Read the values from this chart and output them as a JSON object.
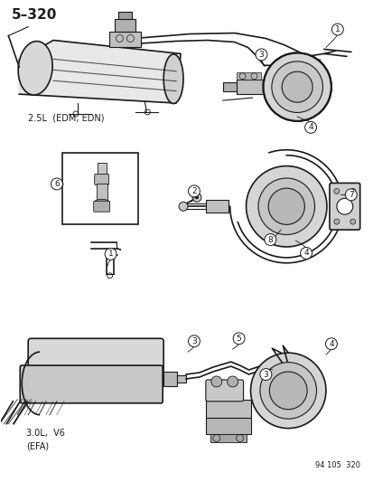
{
  "title": "5–320",
  "footer": "94 105  320",
  "label_25L": "2.5L  (EDM, EDN)",
  "label_30L": "3.0L,  V6\n(EFA)",
  "bg_color": "#ffffff",
  "line_color": "#1a1a1a",
  "font_size_title": 11,
  "font_size_label": 7,
  "font_size_callout": 6.5,
  "font_size_footer": 6
}
